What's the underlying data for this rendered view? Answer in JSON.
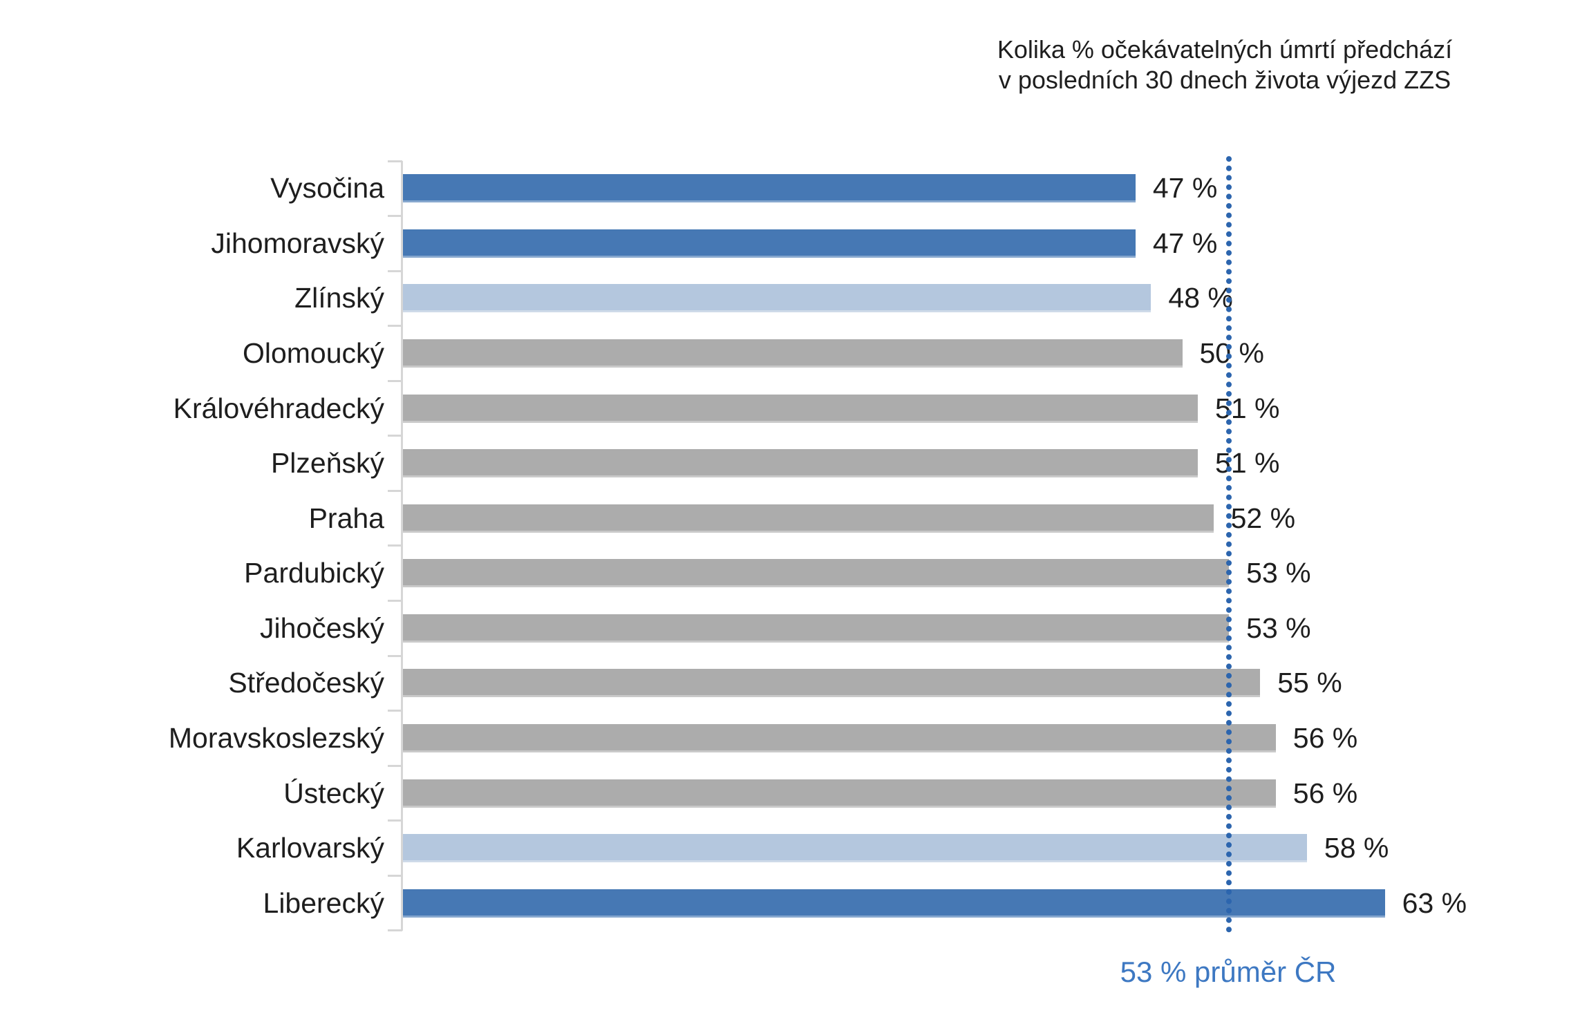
{
  "title": {
    "line1": "Kolika % očekávatelných úmrtí předchází",
    "line2": "v posledních 30 dnech života výjezd ZZS"
  },
  "colors": {
    "dark_blue": "#4678B4",
    "light_blue": "#B4C7DE",
    "gray": "#ACACAC",
    "average_line": "#2C65AE",
    "average_text": "#3D78C2",
    "axis": "#D6D6D6",
    "text": "#1E1E1E"
  },
  "chart_data": {
    "type": "bar",
    "orientation": "horizontal",
    "title": "Kolika % očekávatelných úmrtí předchází v posledních 30 dnech života výjezd ZZS",
    "categories": [
      "Vysočina",
      "Jihomoravský",
      "Zlínský",
      "Olomoucký",
      "Královéhradecký",
      "Plzeňský",
      "Praha",
      "Pardubický",
      "Jihočeský",
      "Středočeský",
      "Moravskoslezský",
      "Ústecký",
      "Karlovarský",
      "Liberecký"
    ],
    "values": [
      47,
      47,
      48,
      50,
      51,
      51,
      52,
      53,
      53,
      55,
      56,
      56,
      58,
      63
    ],
    "value_labels": [
      "47 %",
      "47 %",
      "48 %",
      "50 %",
      "51 %",
      "51 %",
      "52 %",
      "53 %",
      "53 %",
      "55 %",
      "56 %",
      "56 %",
      "58 %",
      "63 %"
    ],
    "bar_color_keys": [
      "dark_blue",
      "dark_blue",
      "light_blue",
      "gray",
      "gray",
      "gray",
      "gray",
      "gray",
      "gray",
      "gray",
      "gray",
      "gray",
      "light_blue",
      "dark_blue"
    ],
    "unit": "%",
    "grid": false,
    "legend": false,
    "reference_line": {
      "value": 53,
      "label": "53 % průměr ČR"
    }
  }
}
